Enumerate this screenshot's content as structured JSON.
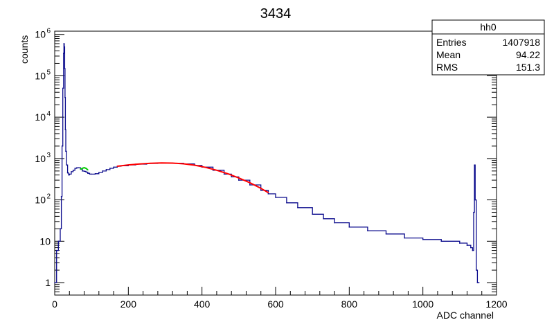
{
  "chart_data": {
    "type": "line",
    "title": "3434",
    "xlabel": "ADC channel",
    "ylabel": "counts",
    "xlim": [
      0,
      1200
    ],
    "ylim": [
      0.5,
      1200000
    ],
    "yscale": "log",
    "x_ticks": [
      "0",
      "200",
      "400",
      "600",
      "800",
      "1000",
      "1200"
    ],
    "y_ticks": [
      "1",
      "10",
      "10^2",
      "10^3",
      "10^4",
      "10^5",
      "10^6"
    ],
    "stats_box": {
      "name": "hh0",
      "rows": [
        {
          "label": "Entries",
          "value": "1407918"
        },
        {
          "label": "Mean",
          "value": "94.22"
        },
        {
          "label": "RMS",
          "value": "151.3"
        }
      ]
    },
    "series": [
      {
        "role": "histogram",
        "color": "#0a0a8c",
        "x": [
          0,
          5,
          10,
          15,
          18,
          20,
          22,
          24,
          25,
          26,
          27,
          28,
          29,
          30,
          32,
          35,
          38,
          40,
          45,
          50,
          55,
          60,
          65,
          70,
          75,
          80,
          85,
          90,
          95,
          100,
          110,
          120,
          130,
          140,
          150,
          160,
          170,
          180,
          200,
          220,
          250,
          280,
          300,
          320,
          350,
          380,
          400,
          430,
          460,
          480,
          500,
          530,
          560,
          580,
          600,
          630,
          660,
          700,
          730,
          760,
          800,
          850,
          900,
          950,
          1000,
          1050,
          1100,
          1120,
          1130,
          1135,
          1138,
          1140,
          1142,
          1145,
          1148,
          1150
        ],
        "y": [
          1,
          6,
          10,
          20,
          120,
          2000,
          50000,
          350000,
          600000,
          500000,
          150000,
          30000,
          5000,
          1500,
          700,
          450,
          400,
          420,
          480,
          520,
          580,
          600,
          600,
          550,
          500,
          490,
          470,
          440,
          420,
          420,
          430,
          460,
          500,
          540,
          580,
          620,
          650,
          670,
          700,
          730,
          760,
          780,
          780,
          770,
          740,
          680,
          620,
          520,
          420,
          360,
          300,
          230,
          170,
          140,
          115,
          85,
          65,
          45,
          35,
          28,
          22,
          18,
          15,
          12,
          11,
          10,
          9,
          8,
          7,
          6,
          50,
          700,
          100,
          2,
          1,
          1
        ]
      },
      {
        "role": "fit",
        "color": "#00cc00",
        "x": [
          70,
          75,
          80,
          85,
          90
        ],
        "y": [
          550,
          580,
          600,
          580,
          530
        ]
      },
      {
        "role": "fit",
        "color": "#ff0000",
        "x": [
          170,
          200,
          230,
          260,
          290,
          320,
          350,
          380,
          410,
          440,
          470,
          500,
          530,
          560,
          580
        ],
        "y": [
          650,
          700,
          740,
          770,
          780,
          775,
          745,
          690,
          610,
          520,
          430,
          340,
          260,
          190,
          150
        ]
      }
    ]
  }
}
